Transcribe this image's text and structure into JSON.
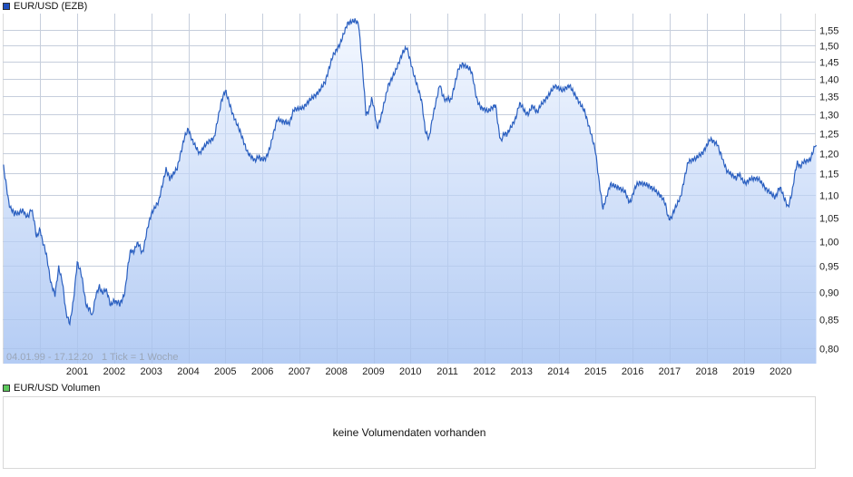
{
  "legend": {
    "main": {
      "label": "EUR/USD (EZB)",
      "color": "#1f4fbf"
    },
    "volume": {
      "label": "EUR/USD Volumen",
      "color": "#5cc85c"
    }
  },
  "range_info": {
    "dates": "04.01.99 - 17.12.20",
    "tick": "1 Tick = 1 Woche"
  },
  "volume_panel": {
    "message": "keine Volumendaten vorhanden"
  },
  "colors": {
    "line": "#2a5fc0",
    "fill_top": "#f4f8ff",
    "fill_bottom": "#b4ccf4",
    "grid": "#dcdcdc"
  },
  "chart_data": {
    "type": "area",
    "title": "EUR/USD (EZB)",
    "xlabel": "",
    "ylabel": "",
    "y_scale": "log",
    "ylim": [
      0.78,
      1.6
    ],
    "y_ticks": [
      "0,80",
      "0,85",
      "0,90",
      "0,95",
      "1,00",
      "1,05",
      "1,10",
      "1,15",
      "1,20",
      "1,25",
      "1,30",
      "1,35",
      "1,40",
      "1,45",
      "1,50",
      "1,55"
    ],
    "x_ticks": [
      "2001",
      "2002",
      "2003",
      "2004",
      "2005",
      "2006",
      "2007",
      "2008",
      "2009",
      "2010",
      "2011",
      "2012",
      "2013",
      "2014",
      "2015",
      "2016",
      "2017",
      "2018",
      "2019",
      "2020"
    ],
    "x_range": [
      "1999-01-04",
      "2020-12-17"
    ],
    "grid": true,
    "legend_position": "top-left",
    "series": [
      {
        "name": "EUR/USD (EZB)",
        "x": [
          1999.01,
          1999.15,
          1999.3,
          1999.45,
          1999.6,
          1999.75,
          1999.9,
          2000.0,
          2000.15,
          2000.3,
          2000.4,
          2000.5,
          2000.6,
          2000.7,
          2000.8,
          2000.9,
          2001.0,
          2001.1,
          2001.25,
          2001.4,
          2001.5,
          2001.6,
          2001.75,
          2001.9,
          2002.0,
          2002.15,
          2002.3,
          2002.45,
          2002.6,
          2002.75,
          2002.9,
          2003.0,
          2003.2,
          2003.4,
          2003.5,
          2003.7,
          2003.9,
          2004.0,
          2004.1,
          2004.3,
          2004.5,
          2004.7,
          2004.9,
          2005.0,
          2005.2,
          2005.4,
          2005.6,
          2005.8,
          2005.95,
          2006.2,
          2006.4,
          2006.6,
          2006.9,
          2007.1,
          2007.3,
          2007.5,
          2007.7,
          2007.9,
          2008.1,
          2008.3,
          2008.5,
          2008.6,
          2008.7,
          2008.8,
          2008.95,
          2009.1,
          2009.2,
          2009.4,
          2009.6,
          2009.8,
          2009.9,
          2010.1,
          2010.3,
          2010.4,
          2010.5,
          2010.6,
          2010.8,
          2010.95,
          2011.1,
          2011.3,
          2011.4,
          2011.6,
          2011.75,
          2011.9,
          2012.1,
          2012.3,
          2012.45,
          2012.6,
          2012.8,
          2012.95,
          2013.2,
          2013.5,
          2013.7,
          2013.9,
          2014.1,
          2014.3,
          2014.5,
          2014.7,
          2014.9,
          2015.0,
          2015.1,
          2015.2,
          2015.4,
          2015.6,
          2015.8,
          2015.95,
          2016.2,
          2016.4,
          2016.6,
          2016.8,
          2016.95,
          2017.1,
          2017.3,
          2017.5,
          2017.7,
          2017.9,
          2018.1,
          2018.3,
          2018.45,
          2018.6,
          2018.8,
          2018.95,
          2019.2,
          2019.4,
          2019.6,
          2019.8,
          2019.95,
          2020.1,
          2020.2,
          2020.3,
          2020.45,
          2020.6,
          2020.8,
          2020.96
        ],
        "values": [
          1.17,
          1.09,
          1.05,
          1.07,
          1.05,
          1.07,
          1.01,
          1.03,
          0.97,
          0.92,
          0.9,
          0.95,
          0.92,
          0.86,
          0.84,
          0.88,
          0.95,
          0.93,
          0.88,
          0.85,
          0.89,
          0.91,
          0.9,
          0.88,
          0.89,
          0.87,
          0.91,
          0.98,
          0.99,
          0.98,
          1.02,
          1.05,
          1.08,
          1.16,
          1.14,
          1.17,
          1.25,
          1.27,
          1.24,
          1.2,
          1.22,
          1.23,
          1.33,
          1.36,
          1.3,
          1.26,
          1.21,
          1.19,
          1.18,
          1.21,
          1.28,
          1.27,
          1.31,
          1.32,
          1.35,
          1.37,
          1.4,
          1.47,
          1.5,
          1.56,
          1.57,
          1.56,
          1.43,
          1.3,
          1.34,
          1.27,
          1.3,
          1.39,
          1.43,
          1.48,
          1.49,
          1.4,
          1.33,
          1.25,
          1.23,
          1.29,
          1.39,
          1.33,
          1.35,
          1.44,
          1.45,
          1.43,
          1.37,
          1.31,
          1.3,
          1.32,
          1.23,
          1.25,
          1.29,
          1.32,
          1.31,
          1.32,
          1.34,
          1.37,
          1.36,
          1.38,
          1.35,
          1.32,
          1.25,
          1.21,
          1.13,
          1.07,
          1.12,
          1.11,
          1.1,
          1.09,
          1.13,
          1.13,
          1.12,
          1.1,
          1.05,
          1.06,
          1.09,
          1.17,
          1.18,
          1.2,
          1.24,
          1.23,
          1.17,
          1.16,
          1.14,
          1.14,
          1.13,
          1.13,
          1.11,
          1.1,
          1.11,
          1.1,
          1.08,
          1.11,
          1.17,
          1.18,
          1.18,
          1.22
        ]
      }
    ]
  }
}
